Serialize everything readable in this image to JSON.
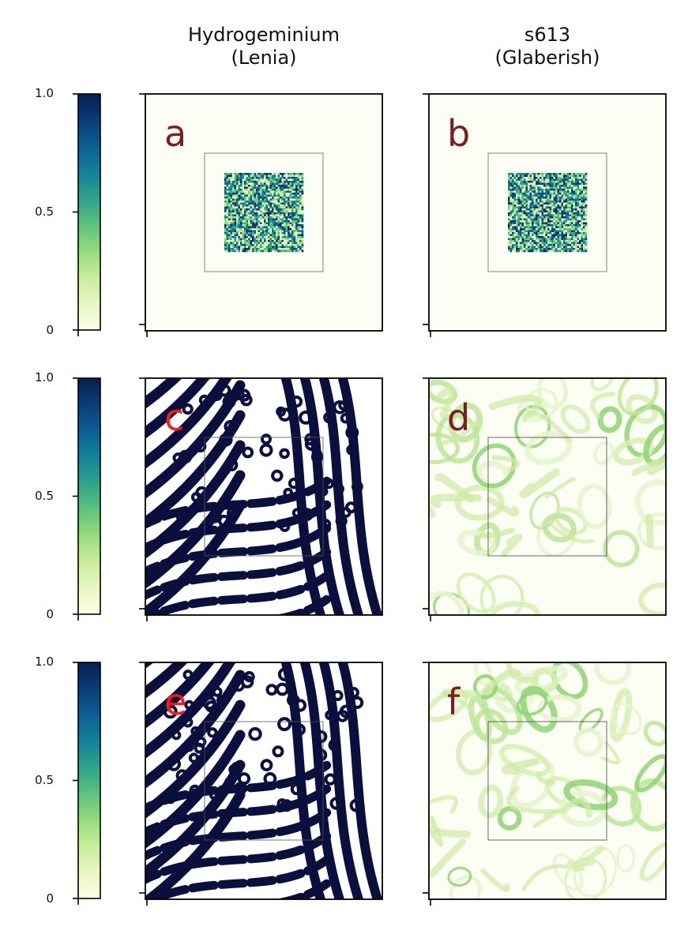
{
  "columns": [
    {
      "title": "Hydrogeminium\n(Lenia)"
    },
    {
      "title": "s613\n(Glaberish)"
    }
  ],
  "colorbar": {
    "ticks": [
      "1.0",
      "0.5",
      "0"
    ],
    "colormap": [
      "#ffffe5",
      "#e8f6c3",
      "#c9ed99",
      "#96dc7c",
      "#5cc27c",
      "#2fa38a",
      "#14819a",
      "#0b5f94",
      "#0a3d76",
      "#08204f"
    ]
  },
  "panels": [
    {
      "letter": "a",
      "letter_color": "#7a1f1f",
      "content": "noise-square"
    },
    {
      "letter": "b",
      "letter_color": "#7a1f1f",
      "content": "noise-square"
    },
    {
      "letter": "c",
      "letter_color": "#ff1a1a",
      "content": "stripes-dense"
    },
    {
      "letter": "d",
      "letter_color": "#7a1f1f",
      "content": "glider-rings"
    },
    {
      "letter": "e",
      "letter_color": "#ff1a1a",
      "content": "stripes-dense"
    },
    {
      "letter": "f",
      "letter_color": "#7a1f1f",
      "content": "glider-rings"
    }
  ],
  "chart_data": {
    "type": "heatmap",
    "rows": 3,
    "cols": 2,
    "colorbar_range": [
      0,
      1.0
    ],
    "colorbar_ticks": [
      0,
      0.5,
      1.0
    ]
  }
}
